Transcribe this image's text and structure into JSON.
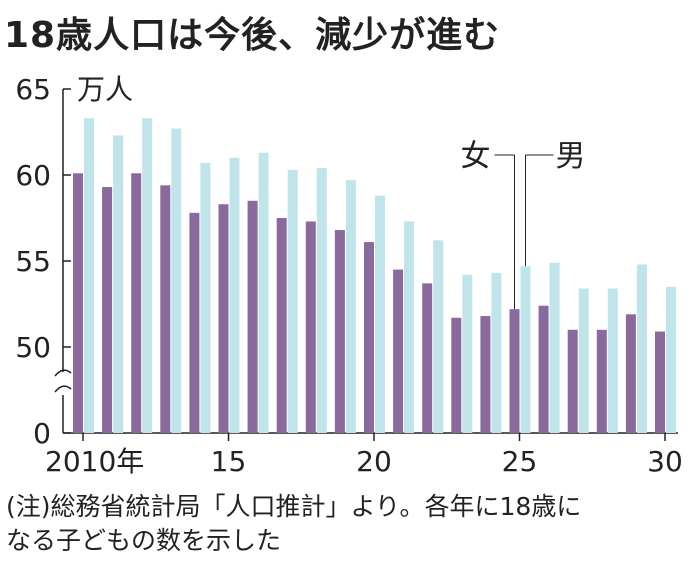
{
  "title": "18歳人口は今後、減少が進む",
  "note": {
    "line1": "(注)総務省統計局「人口推計」より。各年に18歳に",
    "line2": "なる子どもの数を示した"
  },
  "colors": {
    "female": "#8a6a9c",
    "male": "#bfe5ea",
    "axis": "#222222"
  },
  "chart_data": {
    "type": "bar",
    "title": "18歳人口は今後、減少が進む",
    "unit_label": "万人",
    "ylabel": "万人",
    "xlabel": "",
    "ylim": [
      0,
      65
    ],
    "y_axis_break": true,
    "y_ticks": [
      {
        "value": 0,
        "label": "0"
      },
      {
        "value": 50,
        "label": "50"
      },
      {
        "value": 55,
        "label": "55"
      },
      {
        "value": 60,
        "label": "60"
      },
      {
        "value": 65,
        "label": "65"
      }
    ],
    "categories": [
      2010,
      2011,
      2012,
      2013,
      2014,
      2015,
      2016,
      2017,
      2018,
      2019,
      2020,
      2021,
      2022,
      2023,
      2024,
      2025,
      2026,
      2027,
      2028,
      2029,
      2030
    ],
    "x_ticks": [
      {
        "year": 2010,
        "label": "2010年"
      },
      {
        "year": 2015,
        "label": "15"
      },
      {
        "year": 2020,
        "label": "20"
      },
      {
        "year": 2025,
        "label": "25"
      },
      {
        "year": 2030,
        "label": "30"
      }
    ],
    "series": [
      {
        "name": "女",
        "values": [
          60.1,
          59.3,
          60.1,
          59.4,
          57.8,
          58.3,
          58.5,
          57.5,
          57.3,
          56.8,
          56.1,
          54.5,
          53.7,
          51.7,
          51.8,
          52.2,
          52.4,
          51.0,
          51.0,
          51.9,
          50.9
        ]
      },
      {
        "name": "男",
        "values": [
          63.3,
          62.3,
          63.3,
          62.7,
          60.7,
          61.0,
          61.3,
          60.3,
          60.4,
          59.7,
          58.8,
          57.3,
          56.2,
          54.2,
          54.3,
          54.7,
          54.9,
          53.4,
          53.4,
          54.8,
          53.5
        ]
      }
    ],
    "legend": {
      "female_label": "女",
      "male_label": "男",
      "placement": "callout-at-2025"
    }
  }
}
